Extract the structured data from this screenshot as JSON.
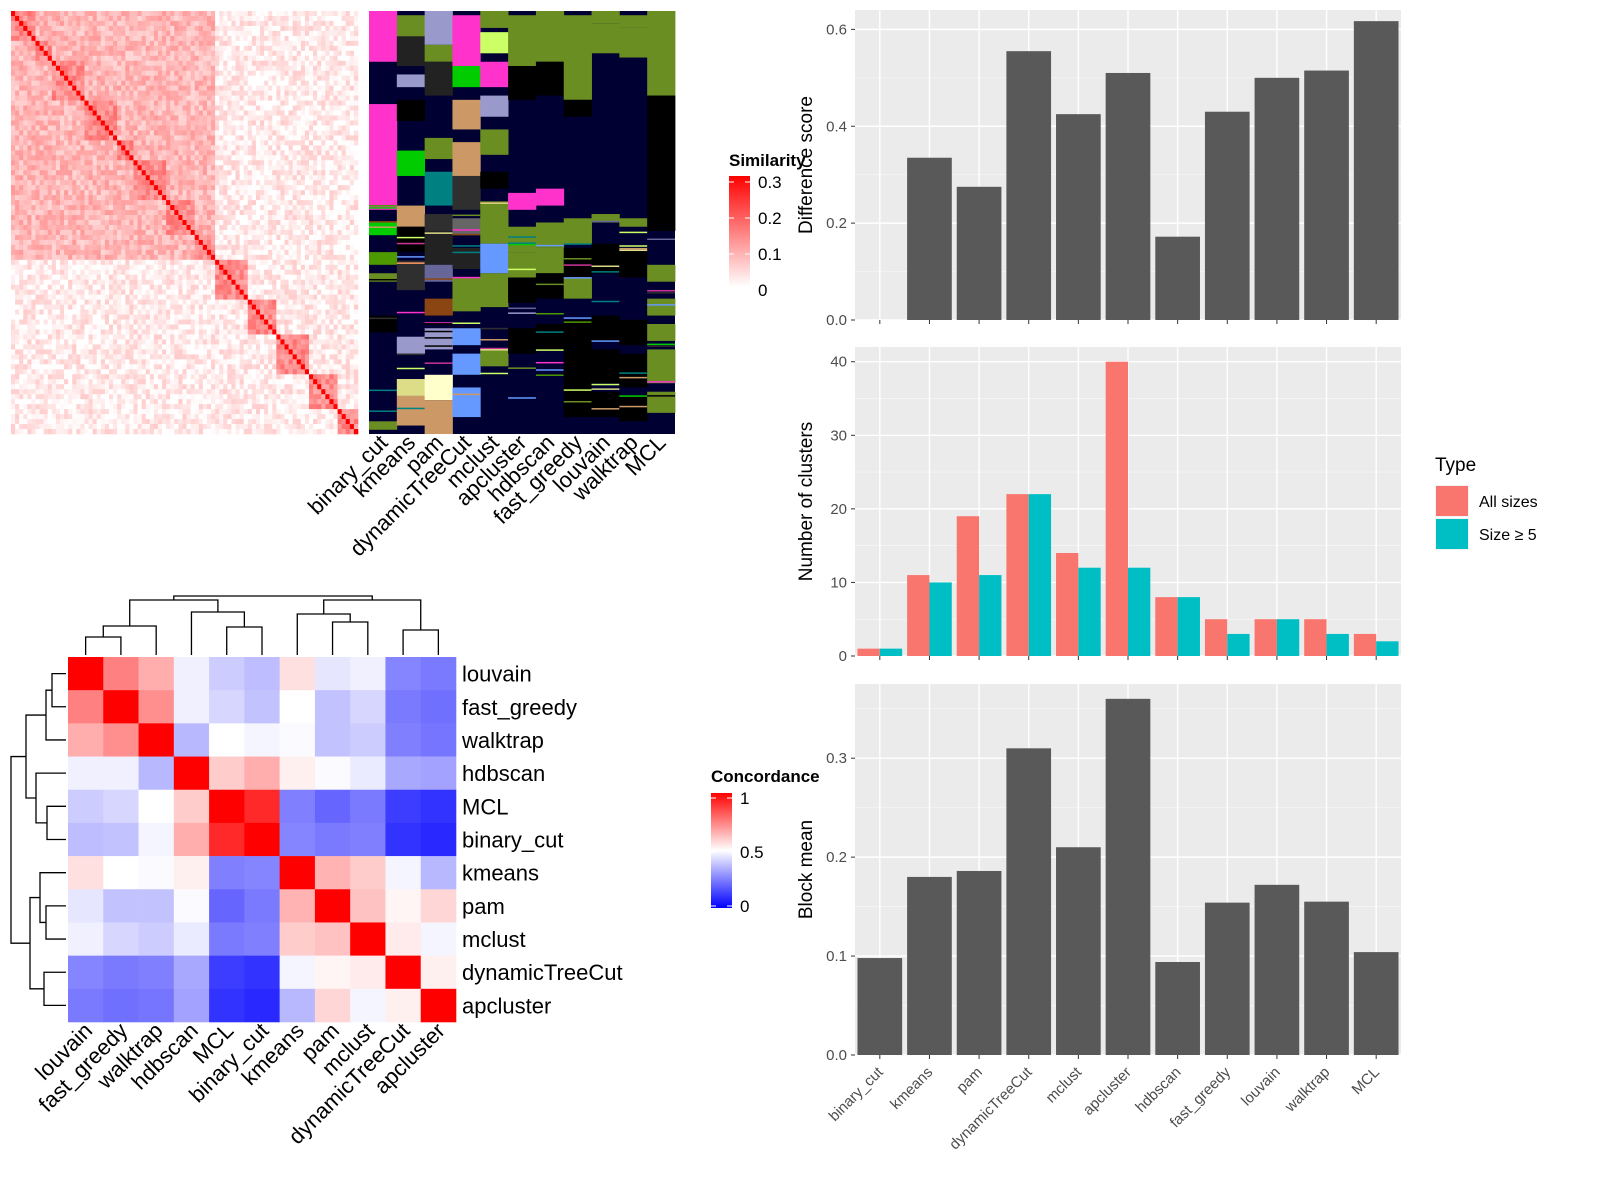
{
  "chart_data": [
    {
      "type": "heatmap",
      "panel": "similarity_heatmap",
      "legend": {
        "title": "Similarity",
        "ticks": [
          "0.3",
          "0.2",
          "0.1",
          "0"
        ],
        "colors": [
          "#ffffff",
          "#ff0000"
        ]
      },
      "matrix_size": 170
    },
    {
      "type": "heatmap",
      "panel": "cluster_membership",
      "columns": [
        "binary_cut",
        "kmeans",
        "pam",
        "dynamicTreeCut",
        "mclust",
        "apcluster",
        "hdbscan",
        "fast_greedy",
        "louvain",
        "walktrap",
        "MCL"
      ],
      "background_color": "#000033",
      "palette": [
        "#4c9900",
        "#ff33cc",
        "#000000",
        "#cc9966",
        "#6b8e23",
        "#2f2f2f",
        "#008080",
        "#8b4513",
        "#9999cc",
        "#ccff66",
        "#00cc00",
        "#ff9966",
        "#6699ff",
        "#dddd88",
        "#666699",
        "#cc3399"
      ]
    },
    {
      "type": "heatmap",
      "panel": "concordance",
      "legend": {
        "title": "Concordance",
        "ticks": [
          "1",
          "0.5",
          "0"
        ],
        "colors": [
          "#0000ff",
          "#ffffff",
          "#ff0000"
        ]
      },
      "rows": [
        "louvain",
        "fast_greedy",
        "walktrap",
        "hdbscan",
        "MCL",
        "binary_cut",
        "kmeans",
        "pam",
        "mclust",
        "dynamicTreeCut",
        "apcluster"
      ],
      "columns": [
        "louvain",
        "fast_greedy",
        "walktrap",
        "hdbscan",
        "MCL",
        "binary_cut",
        "kmeans",
        "pam",
        "mclust",
        "dynamicTreeCut",
        "apcluster"
      ],
      "values": [
        [
          1.0,
          0.75,
          0.66,
          0.47,
          0.4,
          0.37,
          0.56,
          0.45,
          0.47,
          0.26,
          0.24
        ],
        [
          0.75,
          1.0,
          0.72,
          0.47,
          0.42,
          0.38,
          0.5,
          0.38,
          0.42,
          0.24,
          0.22
        ],
        [
          0.66,
          0.72,
          1.0,
          0.36,
          0.5,
          0.48,
          0.49,
          0.38,
          0.4,
          0.25,
          0.23
        ],
        [
          0.47,
          0.47,
          0.36,
          1.0,
          0.6,
          0.66,
          0.53,
          0.49,
          0.46,
          0.33,
          0.32
        ],
        [
          0.4,
          0.42,
          0.5,
          0.6,
          1.0,
          0.92,
          0.25,
          0.2,
          0.24,
          0.12,
          0.1
        ],
        [
          0.37,
          0.38,
          0.48,
          0.66,
          0.92,
          1.0,
          0.26,
          0.24,
          0.25,
          0.1,
          0.08
        ],
        [
          0.56,
          0.5,
          0.49,
          0.53,
          0.25,
          0.26,
          1.0,
          0.65,
          0.6,
          0.48,
          0.36
        ],
        [
          0.45,
          0.38,
          0.38,
          0.49,
          0.2,
          0.24,
          0.65,
          1.0,
          0.62,
          0.52,
          0.58
        ],
        [
          0.47,
          0.42,
          0.4,
          0.46,
          0.24,
          0.25,
          0.6,
          0.62,
          1.0,
          0.54,
          0.48
        ],
        [
          0.26,
          0.24,
          0.25,
          0.33,
          0.12,
          0.1,
          0.48,
          0.52,
          0.54,
          1.0,
          0.53
        ],
        [
          0.24,
          0.22,
          0.23,
          0.32,
          0.1,
          0.08,
          0.36,
          0.58,
          0.48,
          0.53,
          1.0
        ]
      ]
    },
    {
      "type": "bar",
      "panel": "difference_score",
      "categories": [
        "binary_cut",
        "kmeans",
        "pam",
        "dynamicTreeCut",
        "mclust",
        "apcluster",
        "hdbscan",
        "fast_greedy",
        "louvain",
        "walktrap",
        "MCL"
      ],
      "values": [
        0.0,
        0.335,
        0.275,
        0.555,
        0.425,
        0.51,
        0.172,
        0.43,
        0.5,
        0.515,
        0.617
      ],
      "ylabel": "Difference score",
      "ylim": [
        0,
        0.64
      ],
      "yticks": [
        "0.0",
        "0.2",
        "0.4",
        "0.6"
      ],
      "color": "#595959"
    },
    {
      "type": "bar",
      "panel": "number_of_clusters",
      "categories": [
        "binary_cut",
        "kmeans",
        "pam",
        "dynamicTreeCut",
        "mclust",
        "apcluster",
        "hdbscan",
        "fast_greedy",
        "louvain",
        "walktrap",
        "MCL"
      ],
      "series": [
        {
          "name": "All sizes",
          "values": [
            1,
            11,
            19,
            22,
            14,
            40,
            8,
            5,
            5,
            5,
            3
          ],
          "color": "#f8766d"
        },
        {
          "name": "Size ≥ 5",
          "values": [
            1,
            10,
            11,
            22,
            12,
            12,
            8,
            3,
            5,
            3,
            2
          ],
          "color": "#00bfc4"
        }
      ],
      "ylabel": "Number of clusters",
      "ylim": [
        0,
        42
      ],
      "yticks": [
        "0",
        "10",
        "20",
        "30",
        "40"
      ],
      "legend": {
        "title": "Type",
        "placement": "right"
      }
    },
    {
      "type": "bar",
      "panel": "block_mean",
      "categories": [
        "binary_cut",
        "kmeans",
        "pam",
        "dynamicTreeCut",
        "mclust",
        "apcluster",
        "hdbscan",
        "fast_greedy",
        "louvain",
        "walktrap",
        "MCL"
      ],
      "values": [
        0.098,
        0.18,
        0.186,
        0.31,
        0.21,
        0.36,
        0.094,
        0.154,
        0.172,
        0.155,
        0.104
      ],
      "ylabel": "Block mean",
      "ylim": [
        0,
        0.375
      ],
      "yticks": [
        "0.0",
        "0.1",
        "0.2",
        "0.3"
      ],
      "color": "#595959"
    }
  ]
}
